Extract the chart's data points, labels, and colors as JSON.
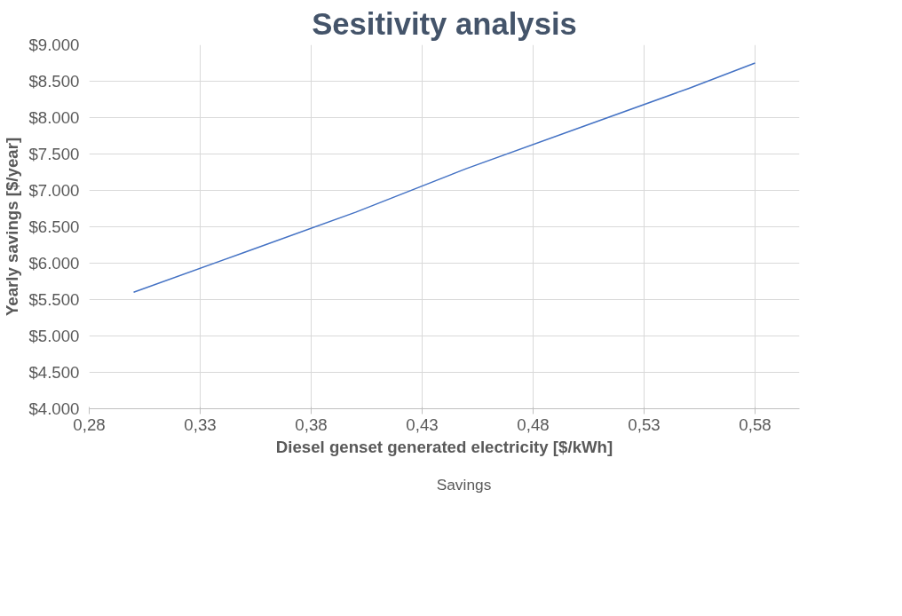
{
  "chart_data": {
    "type": "line",
    "title": "Sesitivity analysis",
    "xlabel": "Diesel genset generated electricity [$/kWh]",
    "ylabel": "Yearly savings [$/year]",
    "x": [
      0.3,
      0.35,
      0.4,
      0.45,
      0.5,
      0.55,
      0.58
    ],
    "series": [
      {
        "name": "Savings",
        "color": "#4472c4",
        "values": [
          5600,
          6150,
          6700,
          7300,
          7850,
          8400,
          8750
        ]
      }
    ],
    "xlim": [
      0.28,
      0.6
    ],
    "xticks": [
      {
        "value": 0.28,
        "label": "0,28"
      },
      {
        "value": 0.33,
        "label": "0,33"
      },
      {
        "value": 0.38,
        "label": "0,38"
      },
      {
        "value": 0.43,
        "label": "0,43"
      },
      {
        "value": 0.48,
        "label": "0,48"
      },
      {
        "value": 0.53,
        "label": "0,53"
      },
      {
        "value": 0.58,
        "label": "0,58"
      }
    ],
    "ylim": [
      4000,
      9000
    ],
    "yticks": [
      {
        "value": 4000,
        "label": "$4.000"
      },
      {
        "value": 4500,
        "label": "$4.500"
      },
      {
        "value": 5000,
        "label": "$5.000"
      },
      {
        "value": 5500,
        "label": "$5.500"
      },
      {
        "value": 6000,
        "label": "$6.000"
      },
      {
        "value": 6500,
        "label": "$6.500"
      },
      {
        "value": 7000,
        "label": "$7.000"
      },
      {
        "value": 7500,
        "label": "$7.500"
      },
      {
        "value": 8000,
        "label": "$8.000"
      },
      {
        "value": 8500,
        "label": "$8.500"
      },
      {
        "value": 9000,
        "label": "$9.000"
      }
    ],
    "grid": true,
    "legend": "bottom",
    "marker": "none",
    "line_style": "solid"
  }
}
